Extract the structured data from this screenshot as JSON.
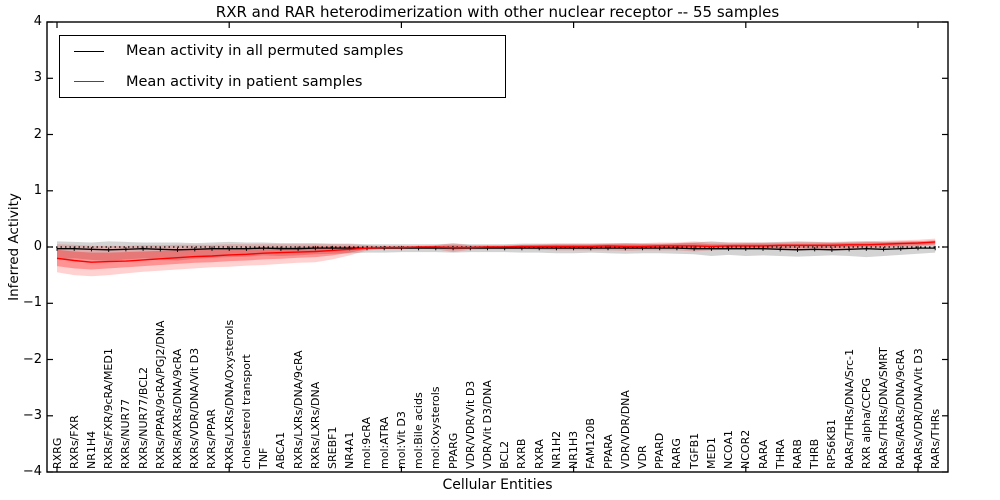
{
  "title": "RXR and RAR heterodimerization with other nuclear receptor -- 55 samples",
  "legend": {
    "items": [
      {
        "label": "Mean activity in all permuted samples",
        "color": "#000000"
      },
      {
        "label": "Mean activity in patient samples",
        "color": "#ff0000"
      }
    ],
    "position": "upper left"
  },
  "axes": {
    "xlabel": "Cellular Entities",
    "ylabel": "Inferred Activity",
    "ylim": [
      -4,
      4
    ],
    "yticks": [
      4,
      3,
      2,
      1,
      0,
      -1,
      -2,
      -3,
      -4
    ],
    "grid": false
  },
  "chart_data": {
    "type": "line",
    "title": "RXR and RAR heterodimerization with other nuclear receptor -- 55 samples",
    "xlabel": "Cellular Entities",
    "ylabel": "Inferred Activity",
    "ylim": [
      -4,
      4
    ],
    "yticks": [
      4,
      3,
      2,
      1,
      0,
      -1,
      -2,
      -3,
      -4
    ],
    "zero_line": true,
    "grid": false,
    "legend_position": "upper left",
    "categories": [
      "RXRG",
      "RXRs/FXR",
      "NR1H4",
      "RXRs/FXR/9cRA/MED1",
      "RXRs/NUR77",
      "RXRs/NUR77/BCL2",
      "RXRs/PPAR/9cRA/PGJ2/DNA",
      "RXRs/RXRs/DNA/9cRA",
      "RXRs/VDR/DNA/Vit D3",
      "RXRs/PPAR",
      "RXRs/LXRs/DNA/Oxysterols",
      "cholesterol transport",
      "TNF",
      "ABCA1",
      "RXRs/LXRs/DNA/9cRA",
      "RXRs/LXRs/DNA",
      "SREBF1",
      "NR4A1",
      "mol:9cRA",
      "mol:ATRA",
      "mol:Vit D3",
      "mol:Bile acids",
      "mol:Oxysterols",
      "PPARG",
      "VDR/VDR/Vit D3",
      "VDR/Vit D3/DNA",
      "BCL2",
      "RXRB",
      "RXRA",
      "NR1H2",
      "NR1H3",
      "FAM120B",
      "PPARA",
      "VDR/VDR/DNA",
      "VDR",
      "PPARD",
      "RARG",
      "TGFB1",
      "MED1",
      "NCOA1",
      "NCOR2",
      "RARA",
      "THRA",
      "RARB",
      "THRB",
      "RPS6KB1",
      "RARs/THRs/DNA/Src-1",
      "RXR alpha/CCPG",
      "RARs/THRs/DNA/SMRT",
      "RARs/RARs/DNA/9cRA",
      "RARs/VDR/DNA/Vit D3",
      "RARs/THRs"
    ],
    "series": [
      {
        "name": "Mean activity in all permuted samples",
        "color": "#000000",
        "band_color": "rgba(128,128,128,0.35)",
        "values": [
          -0.03,
          -0.03,
          -0.04,
          -0.05,
          -0.04,
          -0.03,
          -0.04,
          -0.05,
          -0.04,
          -0.03,
          -0.03,
          -0.03,
          -0.02,
          -0.03,
          -0.03,
          -0.02,
          -0.02,
          -0.02,
          -0.02,
          -0.02,
          -0.02,
          -0.02,
          -0.02,
          -0.02,
          -0.02,
          -0.02,
          -0.02,
          -0.02,
          -0.02,
          -0.02,
          -0.02,
          -0.02,
          -0.02,
          -0.02,
          -0.02,
          -0.02,
          -0.02,
          -0.03,
          -0.03,
          -0.03,
          -0.03,
          -0.03,
          -0.04,
          -0.05,
          -0.04,
          -0.05,
          -0.04,
          -0.03,
          -0.04,
          -0.03,
          -0.02,
          -0.02
        ],
        "band_upper": [
          0.1,
          0.09,
          0.08,
          0.1,
          0.09,
          0.08,
          0.08,
          0.08,
          0.07,
          0.08,
          0.09,
          0.08,
          0.08,
          0.07,
          0.07,
          0.07,
          0.06,
          0.06,
          0.05,
          0.05,
          0.05,
          0.05,
          0.05,
          0.06,
          0.05,
          0.05,
          0.05,
          0.06,
          0.06,
          0.06,
          0.06,
          0.06,
          0.06,
          0.07,
          0.06,
          0.06,
          0.07,
          0.08,
          0.1,
          0.08,
          0.08,
          0.08,
          0.09,
          0.1,
          0.09,
          0.08,
          0.09,
          0.1,
          0.09,
          0.1,
          0.1,
          0.08
        ],
        "band_lower": [
          -0.22,
          -0.2,
          -0.23,
          -0.25,
          -0.22,
          -0.2,
          -0.22,
          -0.24,
          -0.21,
          -0.19,
          -0.18,
          -0.17,
          -0.15,
          -0.16,
          -0.15,
          -0.13,
          -0.12,
          -0.11,
          -0.1,
          -0.1,
          -0.09,
          -0.09,
          -0.09,
          -0.1,
          -0.09,
          -0.09,
          -0.09,
          -0.1,
          -0.1,
          -0.11,
          -0.11,
          -0.1,
          -0.11,
          -0.12,
          -0.11,
          -0.11,
          -0.12,
          -0.13,
          -0.16,
          -0.14,
          -0.16,
          -0.15,
          -0.16,
          -0.17,
          -0.16,
          -0.15,
          -0.16,
          -0.18,
          -0.16,
          -0.14,
          -0.12,
          -0.1
        ]
      },
      {
        "name": "Mean activity in patient samples",
        "color": "#ff0000",
        "band_color_outer": "rgba(255,0,0,0.18)",
        "band_color_inner": "rgba(255,0,0,0.30)",
        "values": [
          -0.2,
          -0.24,
          -0.27,
          -0.26,
          -0.25,
          -0.23,
          -0.21,
          -0.19,
          -0.17,
          -0.16,
          -0.14,
          -0.13,
          -0.11,
          -0.1,
          -0.09,
          -0.08,
          -0.06,
          -0.04,
          -0.02,
          -0.01,
          -0.01,
          0.0,
          0.0,
          -0.01,
          -0.01,
          0.0,
          0.0,
          0.01,
          0.01,
          0.01,
          0.01,
          0.01,
          0.02,
          0.01,
          0.01,
          0.02,
          0.02,
          0.02,
          0.01,
          0.02,
          0.02,
          0.02,
          0.03,
          0.03,
          0.03,
          0.03,
          0.04,
          0.04,
          0.05,
          0.06,
          0.07,
          0.09
        ],
        "band_outer_upper": [
          0.05,
          0.04,
          0.02,
          0.02,
          0.02,
          0.03,
          0.03,
          0.04,
          0.04,
          0.04,
          0.05,
          0.05,
          0.05,
          0.05,
          0.05,
          0.05,
          0.05,
          0.05,
          0.03,
          0.02,
          0.02,
          0.02,
          0.03,
          0.07,
          0.03,
          0.03,
          0.03,
          0.04,
          0.05,
          0.06,
          0.06,
          0.06,
          0.07,
          0.07,
          0.07,
          0.08,
          0.08,
          0.1,
          0.08,
          0.08,
          0.08,
          0.08,
          0.08,
          0.09,
          0.09,
          0.09,
          0.1,
          0.1,
          0.11,
          0.12,
          0.13,
          0.15
        ],
        "band_outer_lower": [
          -0.45,
          -0.5,
          -0.52,
          -0.5,
          -0.47,
          -0.44,
          -0.42,
          -0.4,
          -0.38,
          -0.36,
          -0.35,
          -0.33,
          -0.32,
          -0.3,
          -0.28,
          -0.27,
          -0.22,
          -0.15,
          -0.06,
          -0.04,
          -0.04,
          -0.03,
          -0.04,
          -0.09,
          -0.05,
          -0.04,
          -0.04,
          -0.04,
          -0.05,
          -0.06,
          -0.06,
          -0.06,
          -0.06,
          -0.07,
          -0.06,
          -0.06,
          -0.06,
          -0.08,
          -0.06,
          -0.05,
          -0.05,
          -0.05,
          -0.04,
          -0.04,
          -0.04,
          -0.04,
          -0.03,
          -0.02,
          -0.02,
          -0.01,
          0.01,
          0.03
        ],
        "band_inner_upper": [
          -0.05,
          -0.08,
          -0.1,
          -0.1,
          -0.09,
          -0.08,
          -0.07,
          -0.06,
          -0.05,
          -0.04,
          -0.03,
          -0.02,
          -0.01,
          0.0,
          0.0,
          0.01,
          0.01,
          0.01,
          0.01,
          0.01,
          0.01,
          0.01,
          0.02,
          0.03,
          0.02,
          0.02,
          0.02,
          0.03,
          0.03,
          0.04,
          0.04,
          0.04,
          0.05,
          0.05,
          0.05,
          0.05,
          0.06,
          0.07,
          0.05,
          0.05,
          0.06,
          0.06,
          0.06,
          0.06,
          0.06,
          0.07,
          0.07,
          0.08,
          0.08,
          0.09,
          0.1,
          0.12
        ],
        "band_inner_lower": [
          -0.34,
          -0.38,
          -0.4,
          -0.38,
          -0.36,
          -0.34,
          -0.32,
          -0.3,
          -0.28,
          -0.27,
          -0.25,
          -0.24,
          -0.22,
          -0.21,
          -0.19,
          -0.18,
          -0.15,
          -0.1,
          -0.04,
          -0.03,
          -0.03,
          -0.02,
          -0.02,
          -0.05,
          -0.03,
          -0.02,
          -0.02,
          -0.02,
          -0.02,
          -0.03,
          -0.03,
          -0.03,
          -0.02,
          -0.03,
          -0.03,
          -0.02,
          -0.02,
          -0.04,
          -0.03,
          -0.02,
          -0.02,
          -0.02,
          -0.01,
          -0.01,
          -0.01,
          -0.01,
          0.0,
          0.01,
          0.01,
          0.02,
          0.03,
          0.05
        ]
      }
    ]
  }
}
